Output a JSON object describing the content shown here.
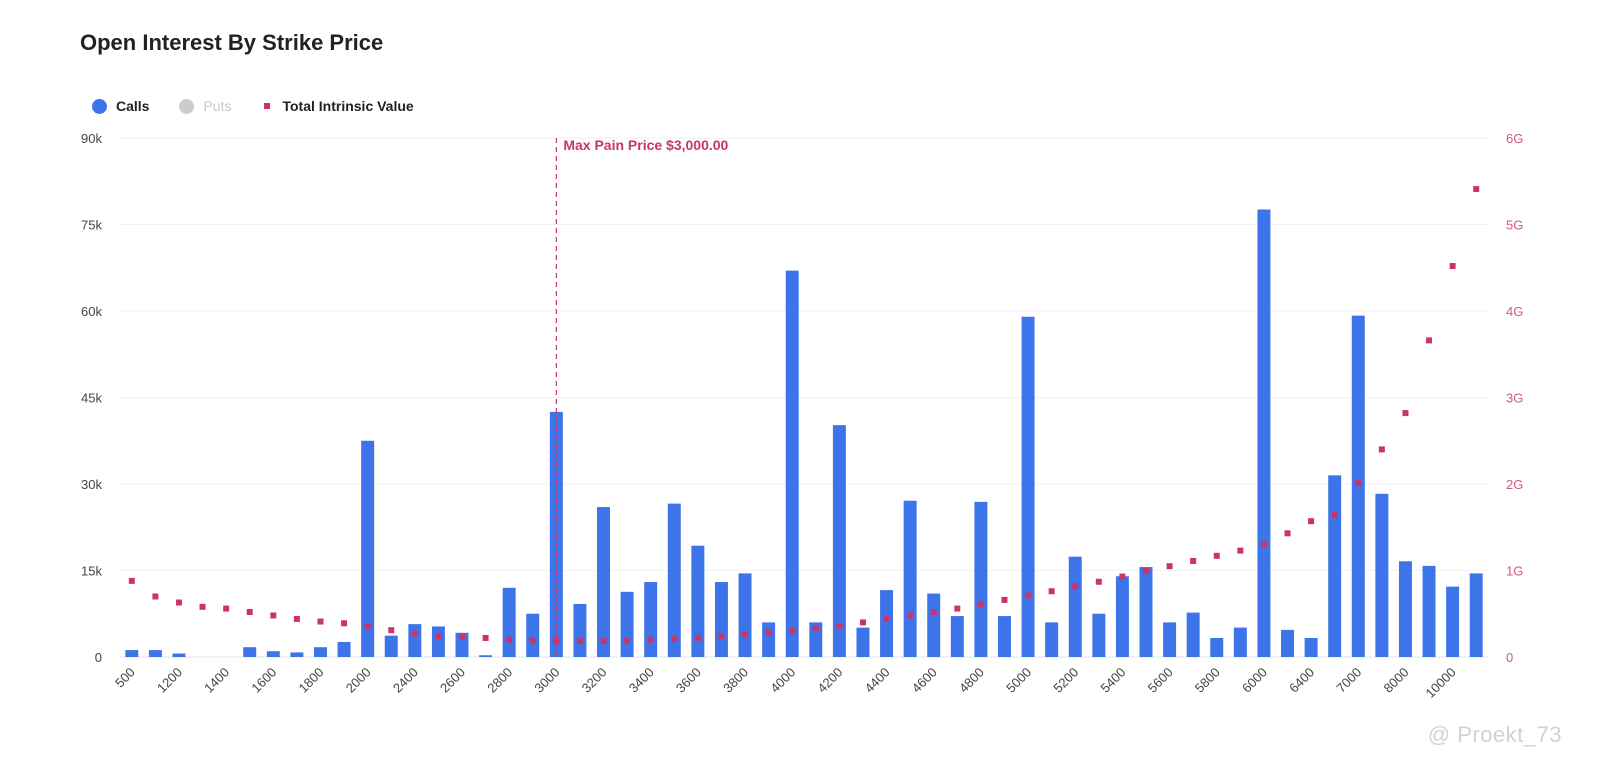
{
  "title": "Open Interest By Strike Price",
  "legend": {
    "calls": "Calls",
    "puts": "Puts",
    "total": "Total Intrinsic Value"
  },
  "colors": {
    "calls": "#3d74ea",
    "puts": "#cccccc",
    "total": "#c9356b",
    "max_pain": "#c9356b",
    "grid": "#f1f1f1",
    "right_axis": "#d2587e"
  },
  "watermark": "@ Proekt_73",
  "chart_data": {
    "type": "bar",
    "title": "Open Interest By Strike Price",
    "y_left": {
      "ticks": [
        "0",
        "15k",
        "30k",
        "45k",
        "60k",
        "75k",
        "90k"
      ],
      "range": [
        0,
        90000
      ]
    },
    "y_right": {
      "ticks": [
        "0",
        "1G",
        "2G",
        "3G",
        "4G",
        "5G",
        "6G"
      ],
      "range": [
        0,
        6000000000
      ]
    },
    "x_tick_labels": [
      "500",
      "1200",
      "1400",
      "1600",
      "1800",
      "2000",
      "2400",
      "2600",
      "2800",
      "3000",
      "3200",
      "3400",
      "3600",
      "3800",
      "4000",
      "4200",
      "4400",
      "4600",
      "4800",
      "5000",
      "5200",
      "5400",
      "5600",
      "5800",
      "6000",
      "6400",
      "7000",
      "8000",
      "10000"
    ],
    "x_tick_indices": [
      0,
      2,
      4,
      6,
      8,
      10,
      12,
      14,
      16,
      18,
      20,
      22,
      24,
      26,
      28,
      30,
      32,
      34,
      36,
      38,
      40,
      42,
      44,
      46,
      48,
      50,
      52,
      54,
      56
    ],
    "max_pain": {
      "label": "Max Pain Price $3,000.00",
      "index": 18
    },
    "grid": true,
    "legend_position": "top-left",
    "series": [
      {
        "name": "Calls",
        "axis": "left",
        "values": [
          1200,
          1200,
          600,
          0,
          0,
          1700,
          1000,
          800,
          1700,
          2600,
          37500,
          3700,
          5700,
          5300,
          4200,
          300,
          12000,
          7500,
          42500,
          9200,
          26000,
          11300,
          13000,
          26600,
          19300,
          13000,
          14500,
          6000,
          67000,
          6000,
          40200,
          5100,
          11600,
          27100,
          11000,
          7100,
          26900,
          7100,
          59000,
          6000,
          17400,
          7500,
          14000,
          15600,
          6000,
          7700,
          3300,
          5100,
          77600,
          4700,
          3300,
          31500,
          59200,
          28300,
          16600,
          15800,
          12200,
          14500
        ]
      },
      {
        "name": "Puts",
        "axis": "left",
        "values": []
      },
      {
        "name": "Total Intrinsic Value",
        "axis": "right",
        "type": "scatter",
        "points": [
          [
            0,
            880000000
          ],
          [
            1,
            700000000
          ],
          [
            2,
            630000000
          ],
          [
            3,
            580000000
          ],
          [
            4,
            560000000
          ],
          [
            5,
            520000000
          ],
          [
            6,
            480000000
          ],
          [
            7,
            440000000
          ],
          [
            8,
            410000000
          ],
          [
            9,
            390000000
          ],
          [
            10,
            350000000
          ],
          [
            11,
            310000000
          ],
          [
            12,
            270000000
          ],
          [
            13,
            240000000
          ],
          [
            14,
            230000000
          ],
          [
            15,
            220000000
          ],
          [
            16,
            200000000
          ],
          [
            17,
            195000000
          ],
          [
            18,
            190000000
          ],
          [
            19,
            185000000
          ],
          [
            20,
            185000000
          ],
          [
            21,
            190000000
          ],
          [
            22,
            200000000
          ],
          [
            23,
            210000000
          ],
          [
            24,
            220000000
          ],
          [
            25,
            240000000
          ],
          [
            26,
            260000000
          ],
          [
            27,
            280000000
          ],
          [
            28,
            300000000
          ],
          [
            29,
            330000000
          ],
          [
            30,
            360000000
          ],
          [
            31,
            400000000
          ],
          [
            32,
            440000000
          ],
          [
            33,
            480000000
          ],
          [
            34,
            520000000
          ],
          [
            35,
            560000000
          ],
          [
            36,
            610000000
          ],
          [
            37,
            660000000
          ],
          [
            38,
            710000000
          ],
          [
            39,
            760000000
          ],
          [
            40,
            820000000
          ],
          [
            41,
            870000000
          ],
          [
            42,
            930000000
          ],
          [
            43,
            1000000000
          ],
          [
            44,
            1050000000
          ],
          [
            45,
            1110000000
          ],
          [
            46,
            1170000000
          ],
          [
            47,
            1230000000
          ],
          [
            48,
            1300000000
          ],
          [
            49,
            1430000000
          ],
          [
            50,
            1570000000
          ],
          [
            51,
            1640000000
          ],
          [
            52,
            2010000000
          ],
          [
            53,
            2400000000
          ],
          [
            54,
            2820000000
          ],
          [
            55,
            3660000000
          ],
          [
            56,
            4520000000
          ],
          [
            57,
            5410000000
          ]
        ]
      }
    ]
  }
}
